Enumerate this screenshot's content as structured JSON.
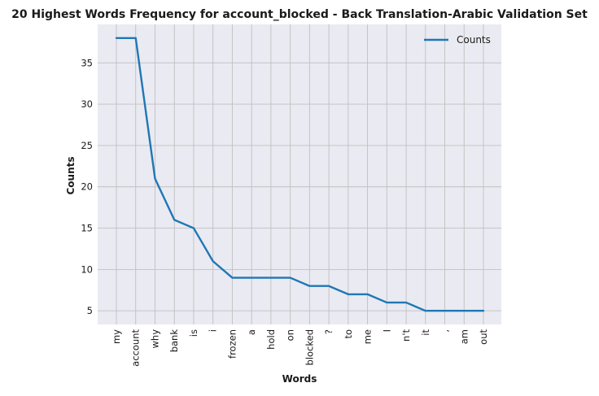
{
  "chart_data": {
    "type": "line",
    "title": "20 Highest Words Frequency for account_blocked - Back Translation-Arabic Validation Set",
    "xlabel": "Words",
    "ylabel": "Counts",
    "categories": [
      "my",
      "account",
      "why",
      "bank",
      "is",
      "i",
      "frozen",
      "a",
      "hold",
      "on",
      "blocked",
      "?",
      "to",
      "me",
      "I",
      "n't",
      "it",
      ",",
      "am",
      "out"
    ],
    "series": [
      {
        "name": "Counts",
        "values": [
          38,
          38,
          21,
          16,
          15,
          11,
          9,
          9,
          9,
          9,
          8,
          8,
          7,
          7,
          6,
          6,
          5,
          5,
          5,
          5
        ],
        "color": "#1f77b4"
      }
    ],
    "ylim": [
      3.35,
      39.65
    ],
    "yticks": [
      5,
      10,
      15,
      20,
      25,
      30,
      35
    ],
    "grid": true,
    "legend_position": "top-right",
    "background_color": "#eaeaf2",
    "grid_color": "#c0c0c0"
  }
}
